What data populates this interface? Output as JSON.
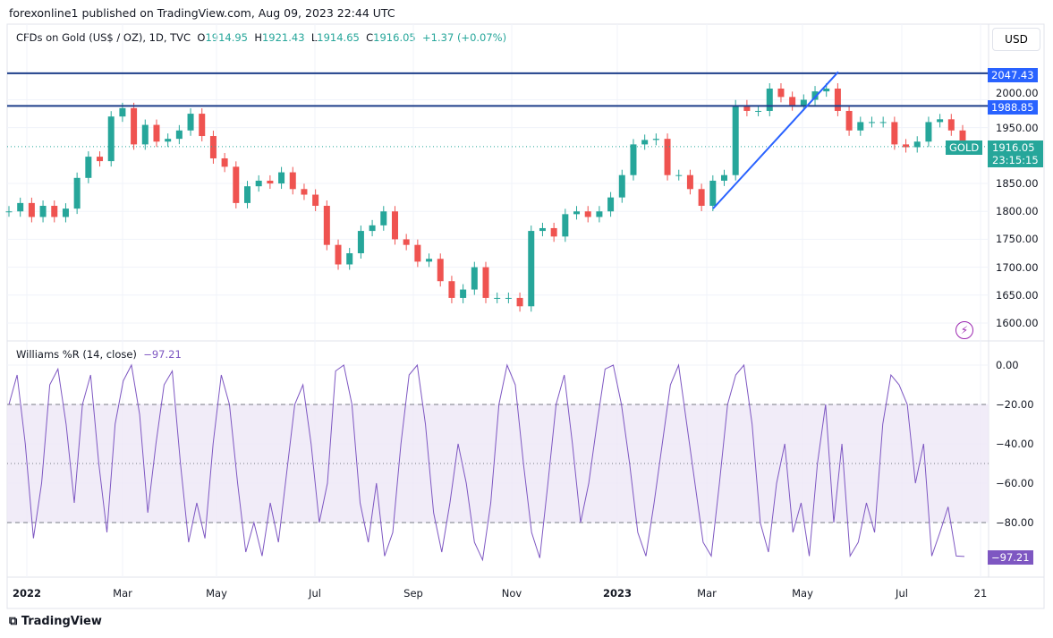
{
  "header": {
    "published": "forexonline1 published on TradingView.com, Aug 09, 2023 22:44 UTC",
    "symbol": "CFDs on Gold (US$ / OZ), 1D, TVC",
    "o_label": "O",
    "o": "1914.95",
    "h_label": "H",
    "h": "1921.43",
    "l_label": "L",
    "l": "1914.65",
    "c_label": "C",
    "c": "1916.05",
    "change": "+1.37 (+0.07%)"
  },
  "currency_button": "USD",
  "symbol_tag": "GOLD",
  "price_tag": "1916.05",
  "countdown": "23:15:15",
  "hlines": [
    {
      "value": 2047.43,
      "label": "2047.43"
    },
    {
      "value": 1988.85,
      "label": "1988.85"
    }
  ],
  "footer": "TradingView",
  "colors": {
    "up": "#26a69a",
    "down": "#ef5350",
    "hline": "#2962ff",
    "wr": "#7e57c2",
    "band": "#ede7f6"
  },
  "chart_data": [
    {
      "type": "candlestick",
      "title": "CFDs on Gold (US$ / OZ), 1D, TVC",
      "ylim": [
        1580,
        2080
      ],
      "yticks": [
        "1600.00",
        "1650.00",
        "1700.00",
        "1750.00",
        "1800.00",
        "1850.00",
        "1950.00",
        "2000.00"
      ],
      "ytick_values": [
        1600,
        1650,
        1700,
        1750,
        1800,
        1850,
        1950,
        2000
      ],
      "xticks": [
        "2022",
        "Mar",
        "May",
        "Jul",
        "Sep",
        "Nov",
        "2023",
        "Mar",
        "May",
        "Jul",
        "21"
      ],
      "weekly_closes": [
        1800,
        1815,
        1790,
        1810,
        1790,
        1805,
        1860,
        1898,
        1890,
        1970,
        1985,
        1920,
        1955,
        1925,
        1930,
        1945,
        1975,
        1935,
        1895,
        1880,
        1815,
        1845,
        1855,
        1850,
        1870,
        1840,
        1830,
        1810,
        1740,
        1705,
        1725,
        1765,
        1775,
        1800,
        1750,
        1740,
        1710,
        1715,
        1675,
        1645,
        1660,
        1700,
        1645,
        1645,
        1645,
        1630,
        1765,
        1770,
        1755,
        1795,
        1800,
        1790,
        1800,
        1825,
        1865,
        1920,
        1928,
        1930,
        1865,
        1865,
        1840,
        1810,
        1855,
        1865,
        1990,
        1980,
        1980,
        2020,
        2005,
        1990,
        2000,
        2015,
        2020,
        1980,
        1945,
        1960,
        1960,
        1960,
        1920,
        1915,
        1925,
        1960,
        1965,
        1945,
        1916
      ],
      "trendline": {
        "from": 1805,
        "to": 2050
      },
      "last": 1916.05
    },
    {
      "type": "line",
      "title": "Williams %R (14, close)",
      "last_label": "−97.21",
      "last": -97.21,
      "ylim": [
        -100,
        0
      ],
      "yticks": [
        "0.00",
        "−20.00",
        "−40.00",
        "−60.00",
        "−80.00"
      ],
      "ytick_values": [
        0,
        -20,
        -40,
        -60,
        -80
      ],
      "bands": [
        -20,
        -50,
        -80
      ],
      "values": [
        -20,
        -5,
        -40,
        -88,
        -60,
        -10,
        -2,
        -30,
        -70,
        -20,
        -5,
        -50,
        -85,
        -30,
        -8,
        0,
        -25,
        -75,
        -40,
        -10,
        -3,
        -50,
        -90,
        -70,
        -88,
        -40,
        -5,
        -20,
        -60,
        -95,
        -80,
        -97,
        -70,
        -90,
        -55,
        -20,
        -10,
        -40,
        -80,
        -60,
        -3,
        0,
        -20,
        -70,
        -90,
        -60,
        -97,
        -85,
        -40,
        -5,
        0,
        -30,
        -75,
        -95,
        -70,
        -40,
        -60,
        -90,
        -99,
        -70,
        -20,
        0,
        -10,
        -50,
        -85,
        -98,
        -60,
        -20,
        -5,
        -40,
        -80,
        -60,
        -30,
        -2,
        0,
        -20,
        -50,
        -85,
        -97,
        -70,
        -40,
        -10,
        0,
        -30,
        -60,
        -90,
        -97,
        -60,
        -20,
        -5,
        0,
        -30,
        -80,
        -95,
        -60,
        -40,
        -85,
        -70,
        -97,
        -50,
        -20,
        -80,
        -40,
        -97,
        -90,
        -70,
        -85,
        -30,
        -5,
        -10,
        -20,
        -60,
        -40,
        -97,
        -85,
        -72,
        -97,
        -97.21
      ]
    }
  ]
}
